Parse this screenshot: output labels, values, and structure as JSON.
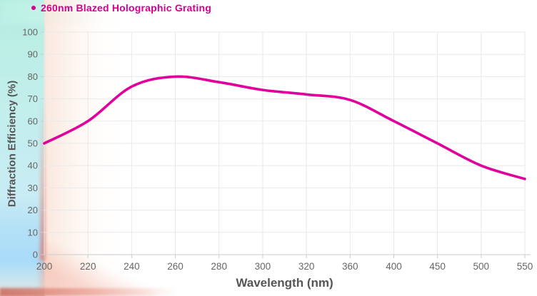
{
  "chart_data": {
    "type": "line",
    "title": "",
    "categories": [
      "200",
      "220",
      "240",
      "260",
      "280",
      "300",
      "320",
      "360",
      "400",
      "450",
      "500",
      "550"
    ],
    "series": [
      {
        "name": "260nm Blazed Holographic Grating",
        "color": "#E0009C",
        "values": [
          50,
          60,
          75.5,
          80,
          77.5,
          74,
          72,
          69.5,
          60,
          50,
          40,
          34
        ]
      }
    ],
    "xlabel": "Wavelength (nm)",
    "ylabel": "Diffraction Efficiency (%)",
    "ylim": [
      0,
      100
    ],
    "y_ticks": [
      0,
      10,
      20,
      30,
      40,
      50,
      60,
      70,
      80,
      90,
      100
    ],
    "grid": true,
    "legend_position": "top-left",
    "legend_marker": "dot-icon"
  },
  "style": {
    "series_color": "#E0009C",
    "legend_text_color": "#D4008F",
    "tick_label_color": "#666666",
    "axis_title_color": "#555555",
    "gridline_color": "#e9e9e9",
    "axis_line_color": "#cccccc"
  }
}
